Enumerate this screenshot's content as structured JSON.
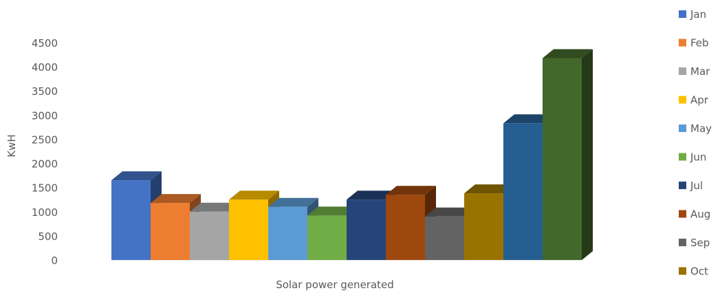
{
  "chart_data": {
    "type": "bar",
    "title": "",
    "xlabel": "Solar power generated",
    "ylabel": "KwH",
    "ylim": [
      0,
      4500
    ],
    "y_ticks": [
      0,
      500,
      1000,
      1500,
      2000,
      2500,
      3000,
      3500,
      4000,
      4500
    ],
    "grid": false,
    "legend_position": "right",
    "series": [
      {
        "name": "Jan",
        "value": 1650,
        "color": "#4472C4"
      },
      {
        "name": "Feb",
        "value": 1180,
        "color": "#ED7D31"
      },
      {
        "name": "Mar",
        "value": 1000,
        "color": "#A5A5A5"
      },
      {
        "name": "Apr",
        "value": 1250,
        "color": "#FFC000"
      },
      {
        "name": "May",
        "value": 1100,
        "color": "#5B9BD5"
      },
      {
        "name": "Jun",
        "value": 920,
        "color": "#70AD47"
      },
      {
        "name": "Jul",
        "value": 1250,
        "color": "#264478"
      },
      {
        "name": "Aug",
        "value": 1350,
        "color": "#9E480E"
      },
      {
        "name": "Sep",
        "value": 900,
        "color": "#636363"
      },
      {
        "name": "Oct",
        "value": 1380,
        "color": "#997300"
      },
      {
        "name": "",
        "value": 2830,
        "color": "#255E91"
      },
      {
        "name": "",
        "value": 4180,
        "color": "#43682B"
      }
    ]
  }
}
